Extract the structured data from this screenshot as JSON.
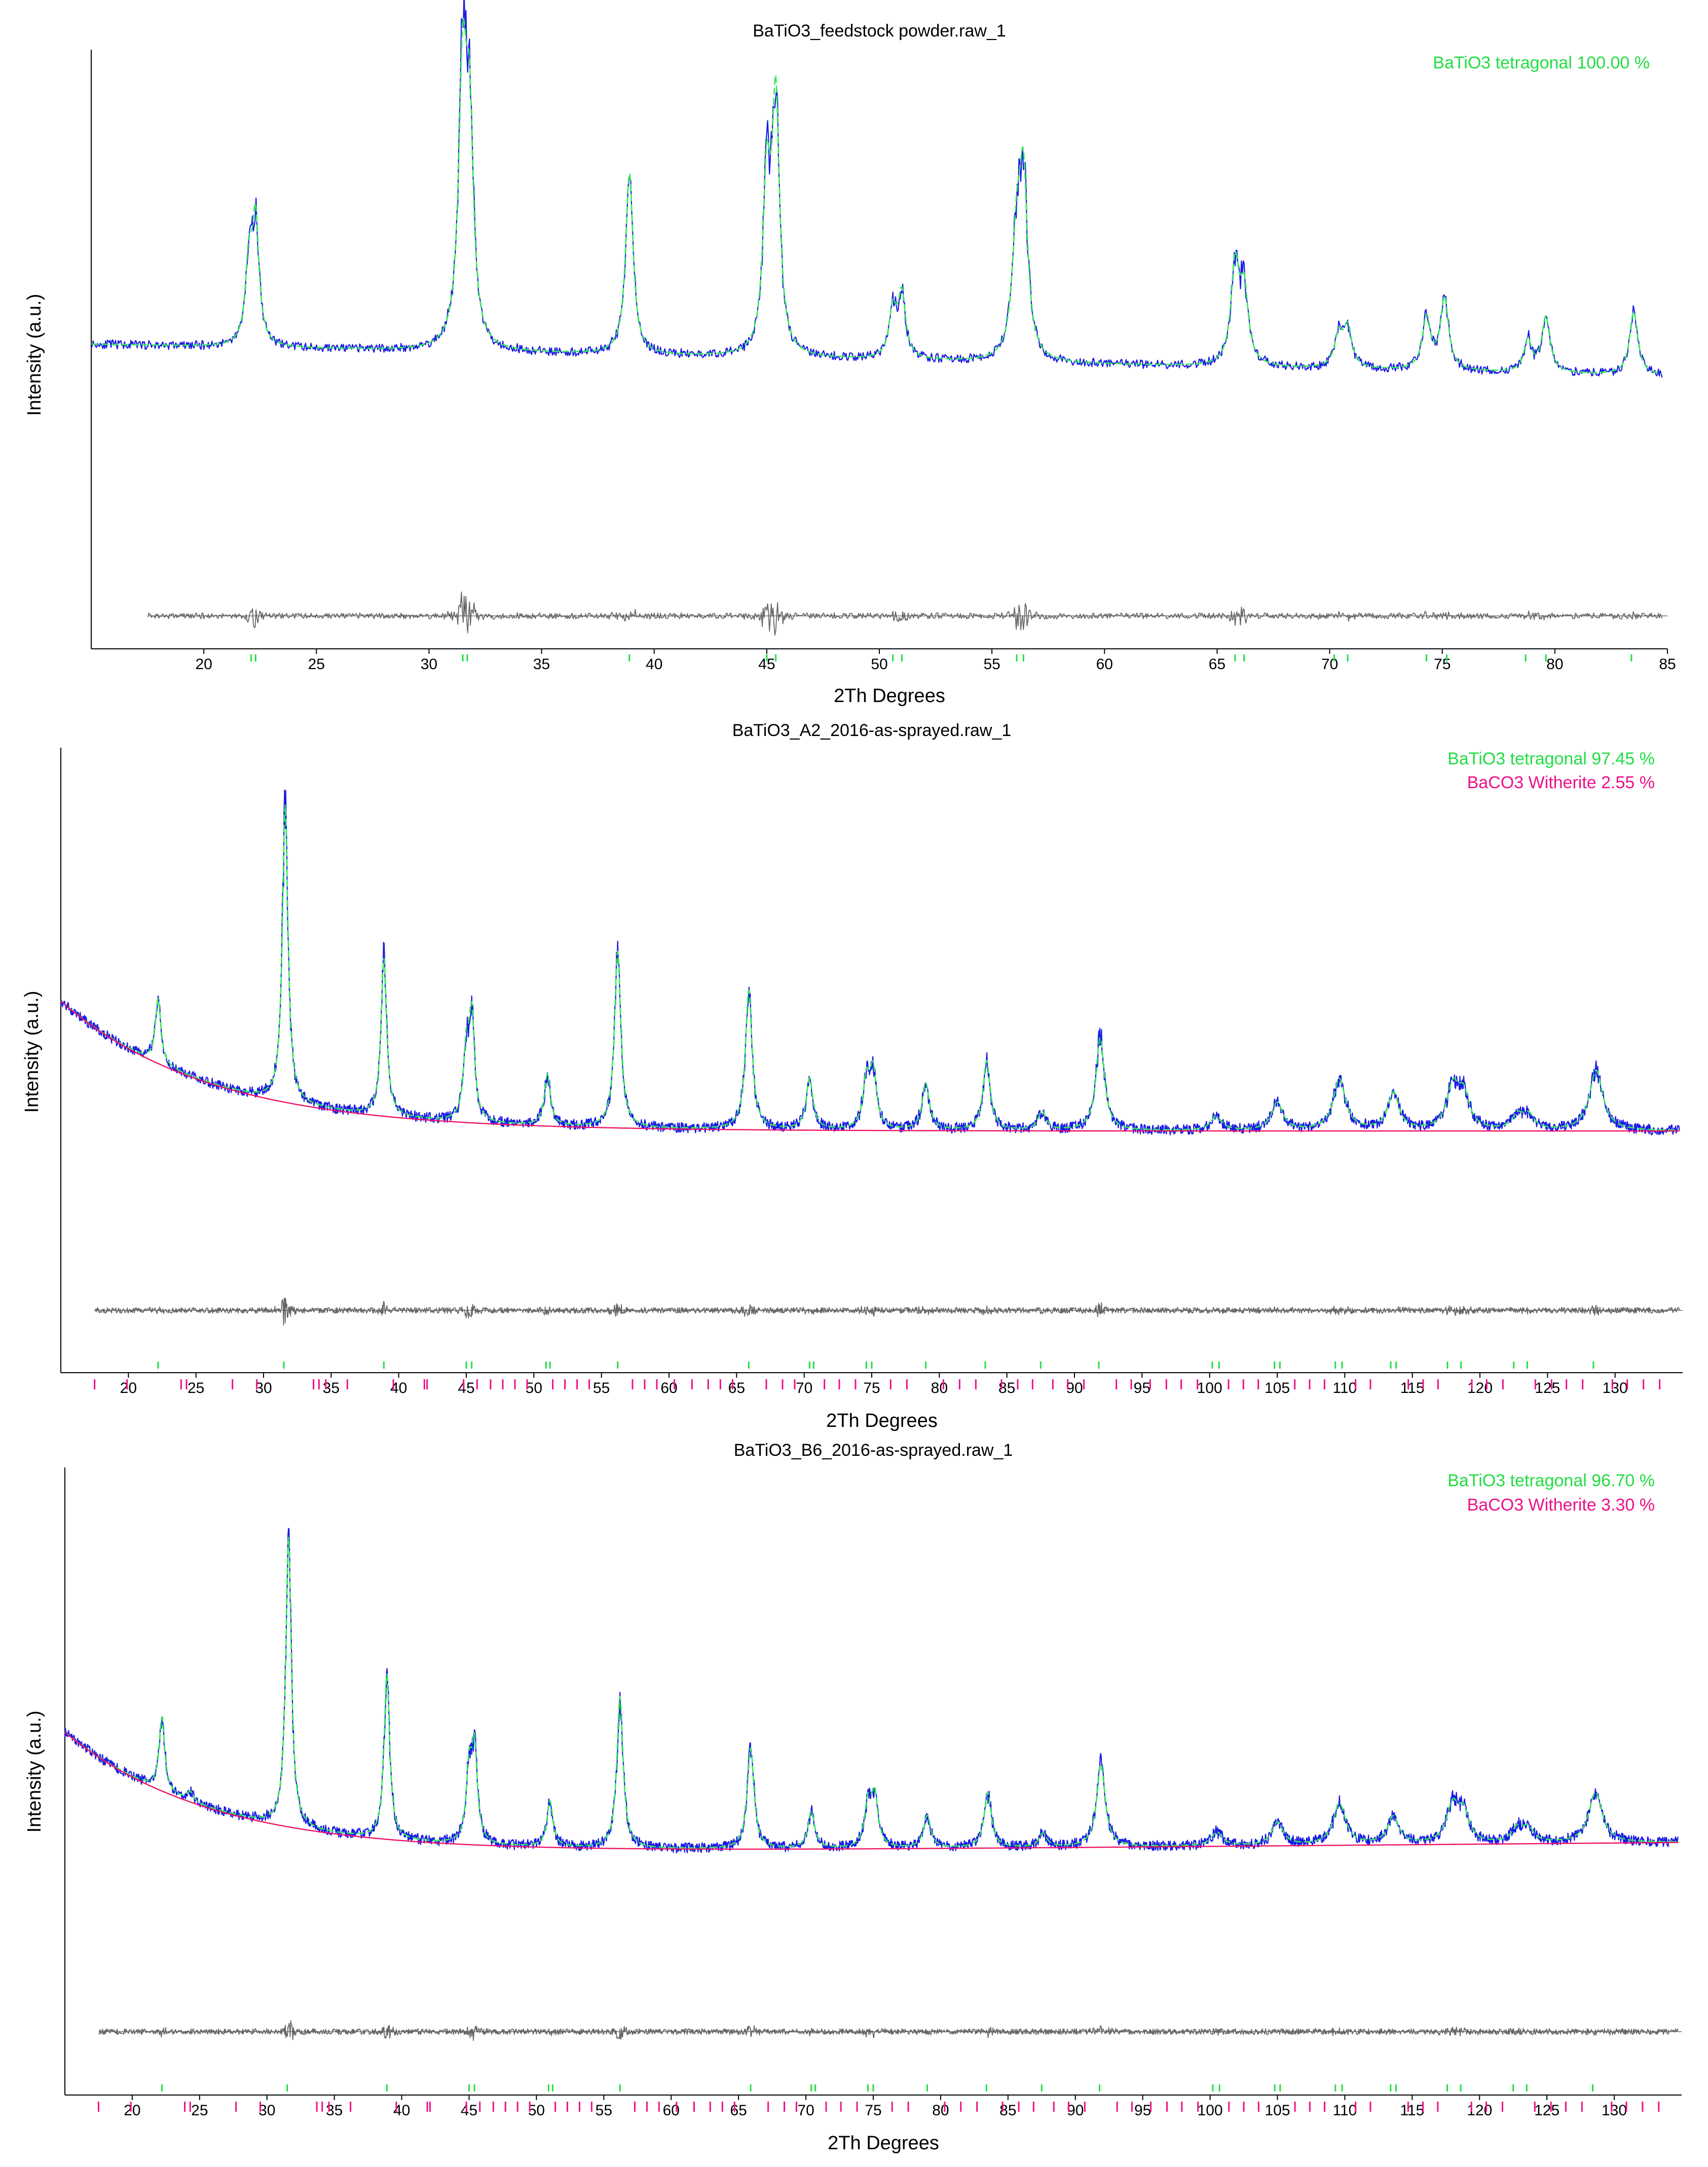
{
  "colors": {
    "observed": "#1a1ae6",
    "calculated": "#33ee55",
    "background": "#ee1166",
    "difference": "#666666",
    "tetragonal": "#22dd44",
    "witherite": "#ee1188"
  },
  "chart_data": [
    {
      "type": "line",
      "title": "BaTiO3_feedstock powder.raw_1",
      "xlabel": "2Th Degrees",
      "ylabel": "Intensity (a.u.)",
      "xlim": [
        15,
        85
      ],
      "xticks": [
        20,
        25,
        30,
        35,
        40,
        45,
        50,
        55,
        60,
        65,
        70,
        75,
        80,
        85
      ],
      "ylim": [
        0,
        100
      ],
      "background": {
        "start": 36,
        "end": 28,
        "exp_amp": 0,
        "decay": 10,
        "show": false
      },
      "diff_level": 12,
      "phases": [
        {
          "name": "BaTiO3 tetragonal",
          "percent": "100.00 %",
          "color": "#22dd44",
          "reflections": [
            22.1,
            22.3,
            31.5,
            31.7,
            38.9,
            45.0,
            45.4,
            50.6,
            51.0,
            56.1,
            56.4,
            65.8,
            66.2,
            70.2,
            70.8,
            74.3,
            75.2,
            78.7,
            79.6,
            83.4
          ]
        }
      ],
      "peaks": [
        {
          "x": 22.0,
          "h": 20,
          "w": 0.18
        },
        {
          "x": 22.3,
          "h": 31,
          "w": 0.18
        },
        {
          "x": 31.5,
          "h": 68,
          "w": 0.22
        },
        {
          "x": 31.8,
          "h": 50,
          "w": 0.2
        },
        {
          "x": 38.9,
          "h": 46,
          "w": 0.2
        },
        {
          "x": 45.0,
          "h": 42,
          "w": 0.2
        },
        {
          "x": 45.4,
          "h": 63,
          "w": 0.2
        },
        {
          "x": 50.6,
          "h": 12,
          "w": 0.2
        },
        {
          "x": 51.0,
          "h": 16,
          "w": 0.2
        },
        {
          "x": 56.1,
          "h": 28,
          "w": 0.24
        },
        {
          "x": 56.4,
          "h": 43,
          "w": 0.22
        },
        {
          "x": 65.8,
          "h": 25,
          "w": 0.22
        },
        {
          "x": 66.2,
          "h": 18,
          "w": 0.22
        },
        {
          "x": 70.4,
          "h": 8,
          "w": 0.22
        },
        {
          "x": 70.8,
          "h": 10,
          "w": 0.22
        },
        {
          "x": 74.3,
          "h": 13,
          "w": 0.22
        },
        {
          "x": 75.1,
          "h": 18,
          "w": 0.22
        },
        {
          "x": 78.8,
          "h": 8,
          "w": 0.2
        },
        {
          "x": 79.6,
          "h": 14,
          "w": 0.22
        },
        {
          "x": 83.5,
          "h": 16,
          "w": 0.22
        }
      ],
      "legend_position": "top-right",
      "grid": false
    },
    {
      "type": "line",
      "title": "BaTiO3_A2_2016-as-sprayed.raw_1",
      "xlabel": "2Th Degrees",
      "ylabel": "Intensity (a.u.)",
      "xlim": [
        15,
        135
      ],
      "xticks": [
        20,
        25,
        30,
        35,
        40,
        45,
        50,
        55,
        60,
        65,
        70,
        75,
        80,
        85,
        90,
        95,
        100,
        105,
        110,
        115,
        120,
        125,
        130
      ],
      "ylim": [
        0,
        100
      ],
      "background": {
        "start": 25,
        "end": 25,
        "exp_amp": 28,
        "decay": 11,
        "show": true
      },
      "diff_level": 13,
      "phases": [
        {
          "name": "BaTiO3 tetragonal",
          "percent": "97.45 %",
          "color": "#22dd44",
          "reflections": [
            22.2,
            31.5,
            38.9,
            45.0,
            45.4,
            50.9,
            51.2,
            56.2,
            65.9,
            70.4,
            70.7,
            74.6,
            75.0,
            79.0,
            83.4,
            87.5,
            91.8,
            100.2,
            100.7,
            104.8,
            105.2,
            109.3,
            109.8,
            113.4,
            113.8,
            117.6,
            118.6,
            122.5,
            123.5,
            128.4
          ]
        },
        {
          "name": "BaCO3 Witherite",
          "percent": "2.55 %",
          "color": "#ee1188",
          "reflections": [
            17.5,
            19.9,
            23.9,
            24.3,
            27.7,
            29.5,
            33.7,
            34.1,
            34.6,
            36.2,
            39.6,
            41.9,
            42.1,
            44.8,
            45.8,
            46.8,
            47.7,
            48.6,
            49.5,
            51.4,
            52.3,
            53.2,
            54.1,
            57.3,
            58.2,
            59.1,
            60.4,
            61.7,
            62.9,
            63.8,
            64.7,
            67.2,
            68.4,
            69.3,
            71.5,
            72.6,
            73.8,
            76.4,
            77.6,
            80.3,
            81.5,
            82.7,
            84.6,
            85.8,
            86.9,
            88.4,
            89.5,
            90.7,
            93.1,
            94.2,
            95.6,
            96.8,
            97.9,
            99.1,
            101.4,
            102.5,
            103.6,
            106.3,
            107.4,
            108.5,
            110.8,
            111.9,
            114.7,
            115.8,
            116.9,
            119.4,
            120.5,
            121.7,
            124.1,
            125.3,
            126.4,
            127.6,
            129.8,
            130.9,
            132.1,
            133.3
          ]
        }
      ],
      "peaks": [
        {
          "x": 22.2,
          "h": 14,
          "w": 0.25
        },
        {
          "x": 31.6,
          "h": 64,
          "w": 0.25
        },
        {
          "x": 38.9,
          "h": 34,
          "w": 0.25
        },
        {
          "x": 45.0,
          "h": 14,
          "w": 0.25
        },
        {
          "x": 45.4,
          "h": 22,
          "w": 0.25
        },
        {
          "x": 51.0,
          "h": 11,
          "w": 0.27
        },
        {
          "x": 56.2,
          "h": 38,
          "w": 0.28
        },
        {
          "x": 65.9,
          "h": 30,
          "w": 0.3
        },
        {
          "x": 70.4,
          "h": 11,
          "w": 0.3
        },
        {
          "x": 74.6,
          "h": 10,
          "w": 0.3
        },
        {
          "x": 75.1,
          "h": 12,
          "w": 0.3
        },
        {
          "x": 79.0,
          "h": 10,
          "w": 0.32
        },
        {
          "x": 83.5,
          "h": 15,
          "w": 0.32
        },
        {
          "x": 87.6,
          "h": 4,
          "w": 0.35
        },
        {
          "x": 91.9,
          "h": 20,
          "w": 0.38
        },
        {
          "x": 100.5,
          "h": 3,
          "w": 0.5
        },
        {
          "x": 105.0,
          "h": 6,
          "w": 0.5
        },
        {
          "x": 109.6,
          "h": 11,
          "w": 0.55
        },
        {
          "x": 113.6,
          "h": 8,
          "w": 0.5
        },
        {
          "x": 118.0,
          "h": 9,
          "w": 0.55
        },
        {
          "x": 118.8,
          "h": 7,
          "w": 0.5
        },
        {
          "x": 122.8,
          "h": 3,
          "w": 0.5
        },
        {
          "x": 123.6,
          "h": 3,
          "w": 0.5
        },
        {
          "x": 128.6,
          "h": 13,
          "w": 0.6
        }
      ],
      "legend_position": "top-right",
      "grid": false
    },
    {
      "type": "line",
      "title": "BaTiO3_B6_2016-as-sprayed.raw_1",
      "xlabel": "2Th Degrees",
      "ylabel": "Intensity (a.u.)",
      "xlim": [
        15,
        135
      ],
      "xticks": [
        20,
        25,
        30,
        35,
        40,
        45,
        50,
        55,
        60,
        65,
        70,
        75,
        80,
        85,
        90,
        95,
        100,
        105,
        110,
        115,
        120,
        125,
        130
      ],
      "ylim": [
        0,
        100
      ],
      "background": {
        "start": 23,
        "end": 26,
        "exp_amp": 27,
        "decay": 11,
        "show": true
      },
      "diff_level": 14,
      "phases": [
        {
          "name": "BaTiO3 tetragonal",
          "percent": "96.70 %",
          "color": "#22dd44",
          "reflections": [
            22.2,
            31.5,
            38.9,
            45.0,
            45.4,
            50.9,
            51.2,
            56.2,
            65.9,
            70.4,
            70.7,
            74.6,
            75.0,
            79.0,
            83.4,
            87.5,
            91.8,
            100.2,
            100.7,
            104.8,
            105.2,
            109.3,
            109.8,
            113.4,
            113.8,
            117.6,
            118.6,
            122.5,
            123.5,
            128.4
          ]
        },
        {
          "name": "BaCO3 Witherite",
          "percent": "3.30 %",
          "color": "#ee1188",
          "reflections": [
            17.5,
            19.9,
            23.9,
            24.3,
            27.7,
            29.5,
            33.7,
            34.1,
            34.6,
            36.2,
            39.6,
            41.9,
            42.1,
            44.8,
            45.8,
            46.8,
            47.7,
            48.6,
            49.5,
            51.4,
            52.3,
            53.2,
            54.1,
            57.3,
            58.2,
            59.1,
            60.4,
            61.7,
            62.9,
            63.8,
            64.7,
            67.2,
            68.4,
            69.3,
            71.5,
            72.6,
            73.8,
            76.4,
            77.6,
            80.3,
            81.5,
            82.7,
            84.6,
            85.8,
            86.9,
            88.4,
            89.5,
            90.7,
            93.1,
            94.2,
            95.6,
            96.8,
            97.9,
            99.1,
            101.4,
            102.5,
            103.6,
            106.3,
            107.4,
            108.5,
            110.8,
            111.9,
            114.7,
            115.8,
            116.9,
            119.4,
            120.5,
            121.7,
            124.1,
            125.3,
            126.4,
            127.6,
            129.8,
            130.9,
            132.1,
            133.3
          ]
        }
      ],
      "peaks": [
        {
          "x": 22.2,
          "h": 16,
          "w": 0.25
        },
        {
          "x": 24.3,
          "h": 2,
          "w": 0.3
        },
        {
          "x": 31.6,
          "h": 63,
          "w": 0.25
        },
        {
          "x": 38.9,
          "h": 36,
          "w": 0.25
        },
        {
          "x": 45.0,
          "h": 15,
          "w": 0.25
        },
        {
          "x": 45.4,
          "h": 20,
          "w": 0.25
        },
        {
          "x": 51.0,
          "h": 10,
          "w": 0.27
        },
        {
          "x": 56.2,
          "h": 33,
          "w": 0.28
        },
        {
          "x": 65.9,
          "h": 22,
          "w": 0.3
        },
        {
          "x": 70.4,
          "h": 8,
          "w": 0.3
        },
        {
          "x": 74.6,
          "h": 9,
          "w": 0.3
        },
        {
          "x": 75.1,
          "h": 11,
          "w": 0.3
        },
        {
          "x": 79.0,
          "h": 7,
          "w": 0.32
        },
        {
          "x": 83.5,
          "h": 12,
          "w": 0.32
        },
        {
          "x": 87.6,
          "h": 3,
          "w": 0.35
        },
        {
          "x": 91.9,
          "h": 18,
          "w": 0.38
        },
        {
          "x": 100.5,
          "h": 3,
          "w": 0.5
        },
        {
          "x": 105.0,
          "h": 5,
          "w": 0.5
        },
        {
          "x": 109.6,
          "h": 9,
          "w": 0.55
        },
        {
          "x": 113.6,
          "h": 6,
          "w": 0.5
        },
        {
          "x": 118.0,
          "h": 8,
          "w": 0.55
        },
        {
          "x": 118.8,
          "h": 6,
          "w": 0.5
        },
        {
          "x": 122.8,
          "h": 3,
          "w": 0.5
        },
        {
          "x": 123.6,
          "h": 3,
          "w": 0.5
        },
        {
          "x": 128.6,
          "h": 11,
          "w": 0.6
        }
      ],
      "legend_position": "top-right",
      "grid": false
    }
  ]
}
